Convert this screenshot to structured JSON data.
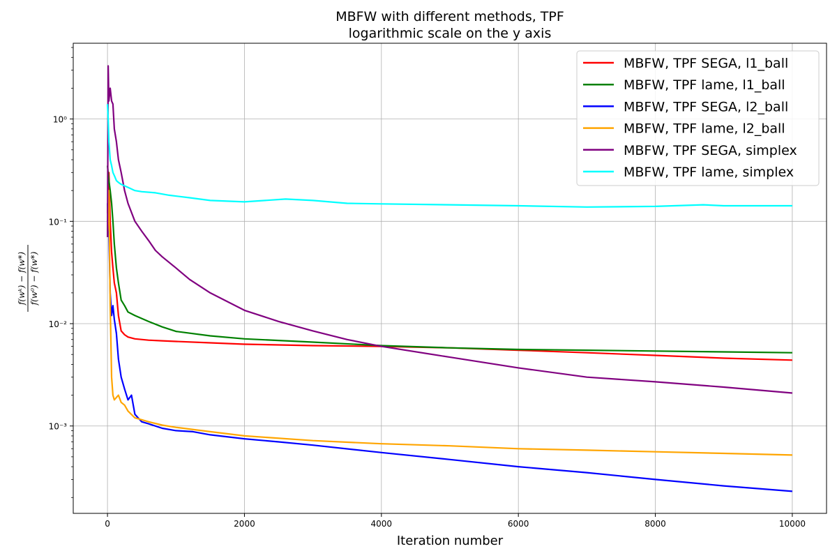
{
  "chart_data": {
    "type": "line",
    "title": "MBFW with different methods, TPF",
    "subtitle": "logarithmic scale on the y axis",
    "xlabel": "Iteration number",
    "ylabel_numerator": "f(wᵏ) − f(w*)",
    "ylabel_denominator": "f(w⁰) − f(w*)",
    "xlim": [
      -500,
      10500
    ],
    "ylim": [
      0.00014,
      5.5
    ],
    "yscale": "log",
    "grid": true,
    "legend_position": "top-right",
    "xticks": [
      0,
      2000,
      4000,
      6000,
      8000,
      10000
    ],
    "xtick_labels": [
      "0",
      "2000",
      "4000",
      "6000",
      "8000",
      "10000"
    ],
    "yticks": [
      0.001,
      0.01,
      0.1,
      1
    ],
    "ytick_labels": [
      "10⁻³",
      "10⁻²",
      "10⁻¹",
      "10⁰"
    ],
    "series": [
      {
        "name": "MBFW, TPF SEGA, l1_ball",
        "color": "#ff0000",
        "x": [
          0,
          20,
          40,
          60,
          80,
          100,
          130,
          160,
          200,
          250,
          300,
          400,
          600,
          800,
          1000,
          1500,
          2000,
          3000,
          4000,
          5000,
          6000,
          7000,
          8000,
          9000,
          10000
        ],
        "y": [
          0.12,
          0.3,
          0.1,
          0.05,
          0.035,
          0.025,
          0.02,
          0.012,
          0.0085,
          0.0078,
          0.0074,
          0.0071,
          0.0069,
          0.0068,
          0.0067,
          0.0065,
          0.0063,
          0.0061,
          0.006,
          0.0058,
          0.0055,
          0.0052,
          0.0049,
          0.0046,
          0.0044
        ]
      },
      {
        "name": "MBFW, TPF lame, l1_ball",
        "color": "#008000",
        "x": [
          0,
          20,
          40,
          60,
          80,
          100,
          130,
          160,
          200,
          250,
          300,
          400,
          600,
          800,
          1000,
          1500,
          2000,
          3000,
          4000,
          5000,
          6000,
          7000,
          8000,
          9000,
          10000
        ],
        "y": [
          0.35,
          0.25,
          0.2,
          0.15,
          0.1,
          0.06,
          0.035,
          0.025,
          0.017,
          0.015,
          0.013,
          0.012,
          0.0105,
          0.0093,
          0.0084,
          0.0076,
          0.0071,
          0.0066,
          0.0061,
          0.0058,
          0.0056,
          0.0055,
          0.0054,
          0.0053,
          0.0052
        ]
      },
      {
        "name": "MBFW, TPF SEGA, l2_ball",
        "color": "#0000ff",
        "x": [
          0,
          20,
          40,
          60,
          80,
          100,
          130,
          160,
          200,
          250,
          300,
          350,
          400,
          500,
          600,
          800,
          1000,
          1250,
          1500,
          2000,
          2500,
          3000,
          4000,
          5000,
          6000,
          7000,
          8000,
          9000,
          10000
        ],
        "y": [
          0.15,
          0.08,
          0.02,
          0.012,
          0.015,
          0.011,
          0.008,
          0.0045,
          0.003,
          0.0023,
          0.0018,
          0.002,
          0.0013,
          0.0011,
          0.00105,
          0.00095,
          0.0009,
          0.00088,
          0.00082,
          0.00075,
          0.0007,
          0.00065,
          0.00055,
          0.00047,
          0.0004,
          0.00035,
          0.0003,
          0.00026,
          0.00023
        ]
      },
      {
        "name": "MBFW, TPF lame, l2_ball",
        "color": "#ffa500",
        "x": [
          0,
          20,
          40,
          60,
          80,
          100,
          130,
          160,
          200,
          250,
          300,
          400,
          500,
          600,
          800,
          1000,
          1500,
          2000,
          3000,
          4000,
          5000,
          6000,
          7000,
          8000,
          9000,
          10000
        ],
        "y": [
          0.08,
          0.2,
          0.015,
          0.003,
          0.002,
          0.0018,
          0.0019,
          0.002,
          0.0017,
          0.0016,
          0.0014,
          0.0012,
          0.00115,
          0.0011,
          0.00102,
          0.00097,
          0.00088,
          0.0008,
          0.00072,
          0.00067,
          0.00064,
          0.0006,
          0.00058,
          0.00056,
          0.00054,
          0.00052
        ]
      },
      {
        "name": "MBFW, TPF SEGA, simplex",
        "color": "#800080",
        "x": [
          0,
          10,
          20,
          40,
          60,
          80,
          100,
          130,
          160,
          200,
          250,
          300,
          400,
          500,
          600,
          700,
          800,
          1000,
          1200,
          1500,
          2000,
          2500,
          3000,
          3500,
          4000,
          5000,
          6000,
          7000,
          8000,
          9000,
          10000
        ],
        "y": [
          0.07,
          3.3,
          1.5,
          2.0,
          1.5,
          1.4,
          0.8,
          0.6,
          0.4,
          0.3,
          0.2,
          0.15,
          0.1,
          0.08,
          0.065,
          0.052,
          0.045,
          0.035,
          0.027,
          0.02,
          0.0135,
          0.0105,
          0.0085,
          0.007,
          0.006,
          0.0047,
          0.0037,
          0.003,
          0.0027,
          0.0024,
          0.0021
        ]
      },
      {
        "name": "MBFW, TPF lame, simplex",
        "color": "#00ffff",
        "x": [
          0,
          10,
          20,
          40,
          60,
          80,
          100,
          130,
          160,
          200,
          300,
          400,
          500,
          700,
          900,
          1200,
          1500,
          2000,
          2600,
          3000,
          3500,
          4000,
          5000,
          6000,
          7000,
          8000,
          8700,
          9000,
          10000
        ],
        "y": [
          1.4,
          1.0,
          0.6,
          0.4,
          0.35,
          0.3,
          0.28,
          0.25,
          0.24,
          0.23,
          0.215,
          0.2,
          0.195,
          0.19,
          0.18,
          0.17,
          0.16,
          0.155,
          0.165,
          0.16,
          0.15,
          0.148,
          0.145,
          0.142,
          0.138,
          0.14,
          0.145,
          0.142,
          0.142
        ]
      }
    ]
  }
}
